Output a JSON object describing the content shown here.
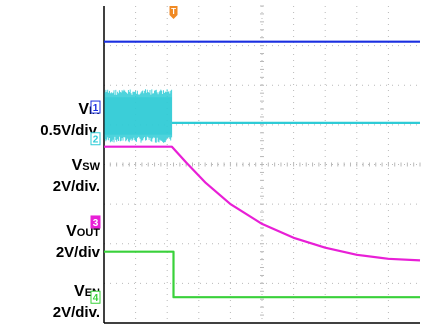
{
  "trigger_marker": {
    "label": "T",
    "color": "#f08a24"
  },
  "channels": [
    {
      "id": "vin",
      "name_main": "V",
      "name_sub": "IN",
      "scale": "0.5V/div.",
      "marker": "1",
      "color": "#1a2fe0"
    },
    {
      "id": "vsw",
      "name_main": "V",
      "name_sub": "SW",
      "scale": "2V/div.",
      "marker": "2",
      "color": "#2ecbd6"
    },
    {
      "id": "vout",
      "name_main": "V",
      "name_sub": "OUT",
      "scale": "2V/div",
      "marker": "3",
      "color": "#e81fd6"
    },
    {
      "id": "ven",
      "name_main": "V",
      "name_sub": "EN",
      "scale": "2V/div.",
      "marker": "4",
      "color": "#39d13a"
    }
  ],
  "chart_data": {
    "type": "line",
    "title": "",
    "xlabel": "",
    "ylabel": "",
    "grid": true,
    "divisions": {
      "x": 10,
      "y": 8
    },
    "xlim": [
      0,
      10
    ],
    "ylim": [
      0,
      8
    ],
    "trigger_x": 2.2,
    "series": [
      {
        "channel": "vin",
        "x": [
          0,
          10
        ],
        "y": [
          7.1,
          7.1
        ]
      },
      {
        "channel": "vsw",
        "switching_until": 2.15,
        "switching_range": [
          4.55,
          5.9
        ],
        "after_level": 5.05,
        "final_x": 10
      },
      {
        "channel": "vout",
        "x": [
          0,
          2.15,
          2.6,
          3.2,
          4.0,
          5.0,
          6.0,
          7.0,
          8.0,
          9.0,
          10.0
        ],
        "y": [
          4.45,
          4.45,
          4.05,
          3.55,
          3.0,
          2.5,
          2.15,
          1.9,
          1.72,
          1.62,
          1.58
        ]
      },
      {
        "channel": "ven",
        "x": [
          0,
          2.2,
          2.2,
          10
        ],
        "y": [
          1.8,
          1.8,
          0.65,
          0.65
        ]
      }
    ]
  }
}
